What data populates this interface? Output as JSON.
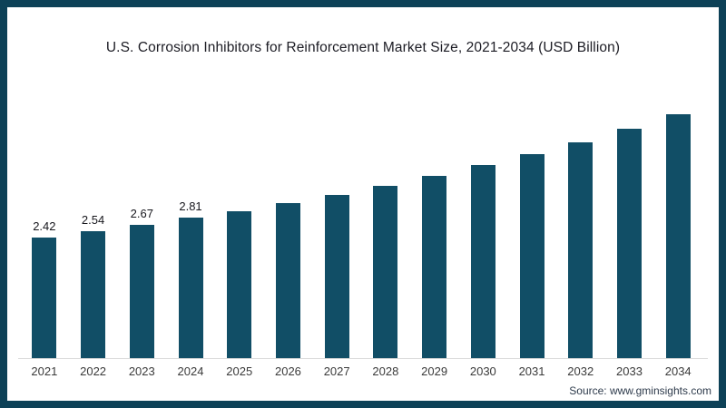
{
  "frame": {
    "border_color": "#0d4157",
    "background_color": "#ffffff"
  },
  "chart_data": {
    "type": "bar",
    "title": "U.S. Corrosion Inhibitors for Reinforcement Market Size, 2021-2034 (USD Billion)",
    "categories": [
      "2021",
      "2022",
      "2023",
      "2024",
      "2025",
      "2026",
      "2027",
      "2028",
      "2029",
      "2030",
      "2031",
      "2032",
      "2033",
      "2034"
    ],
    "values": [
      2.42,
      2.54,
      2.67,
      2.81,
      2.95,
      3.1,
      3.27,
      3.45,
      3.65,
      3.87,
      4.1,
      4.33,
      4.6,
      4.89
    ],
    "data_labels": [
      "2.42",
      "2.54",
      "2.67",
      "2.81",
      "",
      "",
      "",
      "",
      "",
      "",
      "",
      "",
      "",
      ""
    ],
    "bar_color": "#114e66",
    "xlabel": "",
    "ylabel": "",
    "ylim": [
      0,
      5.2
    ],
    "grid": false,
    "legend": false,
    "axis_line_color": "#d9d9d9"
  },
  "source": {
    "label": "Source: www.gminsights.com"
  }
}
